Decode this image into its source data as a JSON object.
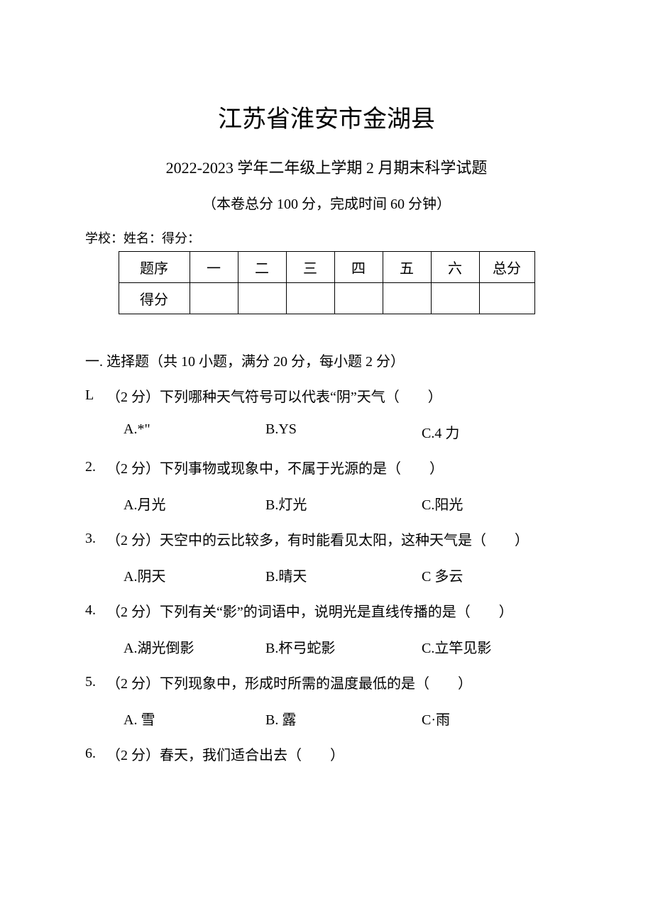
{
  "title_main": "江苏省淮安市金湖县",
  "title_sub": "2022-2023 学年二年级上学期 2 月期末科学试题",
  "exam_info": "（本卷总分 100 分，完成时间 60 分钟）",
  "student_info": "学校：姓名：得分：",
  "score_table": {
    "row1": {
      "header": "题序",
      "col1": "一",
      "col2": "二",
      "col3": "三",
      "col4": "四",
      "col5": "五",
      "col6": "六",
      "total": "总分"
    },
    "row2": {
      "header": "得分",
      "col1": "",
      "col2": "",
      "col3": "",
      "col4": "",
      "col5": "",
      "col6": "",
      "total": ""
    }
  },
  "section_header": "一. 选择题（共 10 小题，满分 20 分，每小题 2 分）",
  "questions": {
    "q1": {
      "num": "L",
      "text": "（2 分）下列哪种天气符号可以代表“阴”天气（　　）",
      "opt_a": "A.*\"",
      "opt_b": "B.YS",
      "opt_c": "C.4 力"
    },
    "q2": {
      "num": "2.",
      "text": "（2 分）下列事物或现象中，不属于光源的是（　　）",
      "opt_a": "A.月光",
      "opt_b": "B.灯光",
      "opt_c": "C.阳光"
    },
    "q3": {
      "num": "3.",
      "text": "（2 分）天空中的云比较多，有时能看见太阳，这种天气是（　　）",
      "opt_a": "A.阴天",
      "opt_b": "B.晴天",
      "opt_c": "C 多云"
    },
    "q4": {
      "num": "4.",
      "text": "（2 分）下列有关“影”的词语中，说明光是直线传播的是（　　）",
      "opt_a": "A.湖光倒影",
      "opt_b": "B.杯弓蛇影",
      "opt_c": "C.立竿见影"
    },
    "q5": {
      "num": "5.",
      "text": "（2 分）下列现象中，形成时所需的温度最低的是（　　）",
      "opt_a": "A. 雪",
      "opt_b": "B. 露",
      "opt_c": "C·雨"
    },
    "q6": {
      "num": "6.",
      "text": "（2 分）春天，我们适合出去（　　）"
    }
  }
}
